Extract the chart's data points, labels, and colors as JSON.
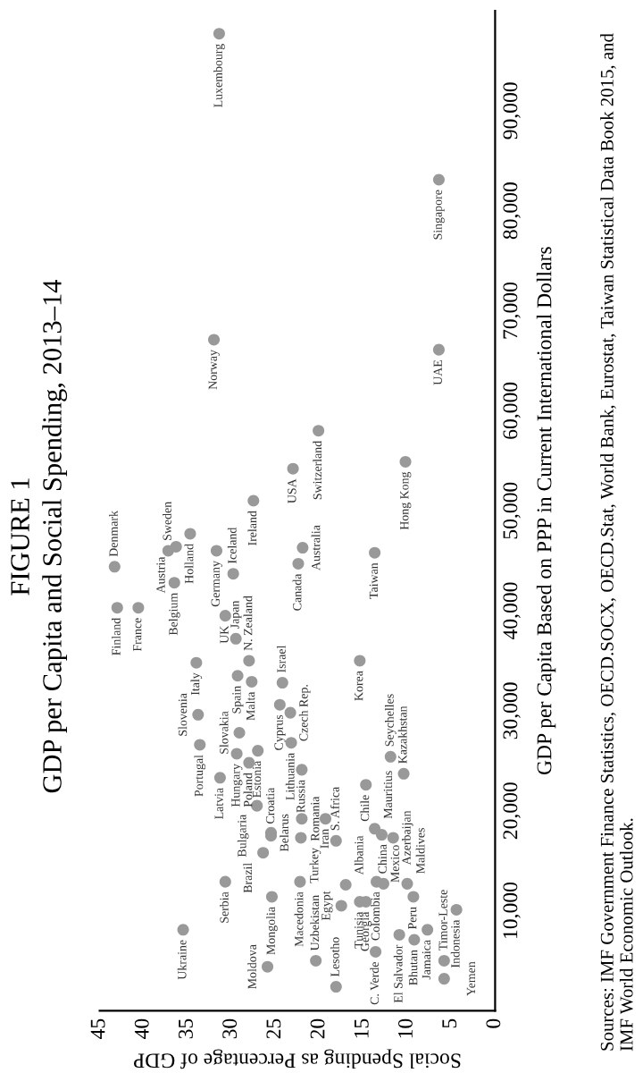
{
  "chart_data": {
    "type": "scatter",
    "title": "FIGURE 1",
    "subtitle": "GDP per Capita and Social Spending, 2013–14",
    "ylabel": "GDP per Capita Based on PPP in Current International Dollars",
    "xlabel": "Social Spending as Percentage of GDP",
    "marker": "circle",
    "grid": false,
    "legend": false,
    "ylim": [
      0,
      100000
    ],
    "yticks": [
      {
        "value": 10000,
        "label": "10,000"
      },
      {
        "value": 20000,
        "label": "20,000"
      },
      {
        "value": 30000,
        "label": "30,000"
      },
      {
        "value": 40000,
        "label": "40,000"
      },
      {
        "value": 50000,
        "label": "50,000"
      },
      {
        "value": 60000,
        "label": "60,000"
      },
      {
        "value": 70000,
        "label": "70,000"
      },
      {
        "value": 80000,
        "label": "80,000"
      },
      {
        "value": 90000,
        "label": "90,000"
      }
    ],
    "xlim": [
      45,
      0
    ],
    "xticks": [
      0,
      5,
      10,
      15,
      20,
      25,
      30,
      35,
      40,
      45
    ],
    "series": [
      {
        "color": "#999999",
        "values": [
          97700,
          83100,
          67100,
          66100,
          44400,
          40300,
          40300,
          46000,
          46400,
          47700,
          42800,
          46000,
          43700,
          51000,
          54200,
          58000,
          54900,
          44700,
          46300,
          45800,
          39500,
          34800,
          37200,
          35000,
          33500,
          32900,
          32800,
          35000,
          30600,
          29800,
          29600,
          26600,
          27800,
          25700,
          23300,
          20500,
          26000,
          26800,
          24800,
          17800,
          17500,
          24100,
          19200,
          17300,
          19200,
          17000,
          12900,
          15800,
          11400,
          4400,
          12900,
          5000,
          2400,
          10500,
          12600,
          10900,
          10900,
          12900,
          18200,
          22600,
          25400,
          17600,
          17300,
          23700,
          12700,
          12700,
          11400,
          10100,
          5900,
          7600,
          7100,
          8100,
          5000,
          3200,
          8100
        ],
        "x": [
          31.4,
          6.4,
          32.0,
          6.4,
          43.3,
          43.0,
          40.6,
          37.2,
          36.3,
          34.7,
          36.5,
          31.7,
          29.8,
          27.5,
          23.0,
          20.1,
          10.2,
          22.4,
          21.9,
          13.7,
          30.7,
          34.0,
          29.5,
          28.0,
          29.3,
          27.7,
          24.2,
          15.4,
          24.5,
          23.3,
          33.8,
          33.6,
          29.1,
          29.4,
          31.3,
          27.1,
          27.0,
          23.2,
          28.0,
          25.5,
          25.5,
          22.0,
          22.0,
          22.1,
          19.3,
          18.1,
          30.7,
          26.4,
          25.4,
          25.9,
          22.2,
          20.4,
          18.1,
          17.5,
          17.0,
          15.4,
          14.7,
          13.5,
          13.7,
          14.7,
          11.9,
          12.9,
          11.6,
          10.4,
          10.0,
          12.7,
          9.3,
          4.4,
          13.6,
          10.9,
          9.2,
          7.7,
          5.8,
          5.8,
          35.5
        ]
      }
    ],
    "annotations": [
      {
        "text": "Luxembourg",
        "y": 97700,
        "x": 31.4
      },
      {
        "text": "Singapore",
        "y": 83100,
        "x": 6.4
      },
      {
        "text": "Norway",
        "y": 67100,
        "x": 32.0
      },
      {
        "text": "UAE",
        "y": 66100,
        "x": 6.4
      },
      {
        "text": "Denmark",
        "y": 44400,
        "x": 43.3
      },
      {
        "text": "Finland",
        "y": 40300,
        "x": 43.0
      },
      {
        "text": "France",
        "y": 40300,
        "x": 40.6
      },
      {
        "text": "Sweden",
        "y": 46000,
        "x": 37.2
      },
      {
        "text": "Austria",
        "y": 46400,
        "x": 36.3
      },
      {
        "text": "Holland",
        "y": 47700,
        "x": 34.7
      },
      {
        "text": "Belgium",
        "y": 42800,
        "x": 36.5
      },
      {
        "text": "Germany",
        "y": 46000,
        "x": 31.7
      },
      {
        "text": "Iceland",
        "y": 43700,
        "x": 29.8
      },
      {
        "text": "Ireland",
        "y": 51000,
        "x": 27.5
      },
      {
        "text": "USA",
        "y": 54200,
        "x": 23.0
      },
      {
        "text": "Switzerland",
        "y": 58000,
        "x": 20.1
      },
      {
        "text": "Hong Kong",
        "y": 54900,
        "x": 10.2
      },
      {
        "text": "Canada",
        "y": 44700,
        "x": 22.4
      },
      {
        "text": "Australia",
        "y": 46300,
        "x": 21.9
      },
      {
        "text": "Taiwan",
        "y": 45800,
        "x": 13.7
      },
      {
        "text": "UK",
        "y": 39500,
        "x": 30.7
      },
      {
        "text": "Italy",
        "y": 34800,
        "x": 34.0
      },
      {
        "text": "Japan",
        "y": 37200,
        "x": 29.5
      },
      {
        "text": "N. Zealand",
        "y": 35000,
        "x": 28.0
      },
      {
        "text": "Spain",
        "y": 33500,
        "x": 29.3
      },
      {
        "text": "Malta",
        "y": 32900,
        "x": 27.7
      },
      {
        "text": "Israel",
        "y": 32800,
        "x": 24.2
      },
      {
        "text": "Korea",
        "y": 35000,
        "x": 15.4
      },
      {
        "text": "Cyprus",
        "y": 30600,
        "x": 24.5
      },
      {
        "text": "Czech Rep.",
        "y": 29800,
        "x": 23.3
      },
      {
        "text": "Slovenia",
        "y": 29600,
        "x": 33.8
      },
      {
        "text": "Portugal",
        "y": 26600,
        "x": 33.6
      },
      {
        "text": "Slovakia",
        "y": 27800,
        "x": 29.1
      },
      {
        "text": "Hungary",
        "y": 25700,
        "x": 29.4
      },
      {
        "text": "Latvia",
        "y": 23300,
        "x": 31.3
      },
      {
        "text": "Croatia",
        "y": 20500,
        "x": 27.1
      },
      {
        "text": "Estonia",
        "y": 26000,
        "x": 27.0
      },
      {
        "text": "Lithuania",
        "y": 26800,
        "x": 23.2
      },
      {
        "text": "Poland",
        "y": 24800,
        "x": 28.0
      },
      {
        "text": "Belarus",
        "y": 17800,
        "x": 25.5
      },
      {
        "text": "Bulgaria",
        "y": 17500,
        "x": 25.5
      },
      {
        "text": "Russia",
        "y": 24100,
        "x": 22.0
      },
      {
        "text": "Romania",
        "y": 19200,
        "x": 22.0
      },
      {
        "text": "Turkey",
        "y": 17300,
        "x": 22.1
      },
      {
        "text": "Iran",
        "y": 19200,
        "x": 19.3
      },
      {
        "text": "S. Africa",
        "y": 17000,
        "x": 18.1
      },
      {
        "text": "Serbia",
        "y": 12900,
        "x": 30.7
      },
      {
        "text": "Brazil",
        "y": 15800,
        "x": 26.4
      },
      {
        "text": "Mongolia",
        "y": 11400,
        "x": 25.4
      },
      {
        "text": "Moldova",
        "y": 4400,
        "x": 25.9
      },
      {
        "text": "Macedonia",
        "y": 12900,
        "x": 22.2
      },
      {
        "text": "Uzbekistan",
        "y": 5000,
        "x": 20.4
      },
      {
        "text": "Lesotho",
        "y": 2400,
        "x": 18.1
      },
      {
        "text": "Egypt",
        "y": 10500,
        "x": 17.5
      },
      {
        "text": "Albania",
        "y": 12600,
        "x": 17.0
      },
      {
        "text": "Tunisia",
        "y": 10900,
        "x": 15.4
      },
      {
        "text": "Georgia",
        "y": 10900,
        "x": 14.7
      },
      {
        "text": "Colombia",
        "y": 12900,
        "x": 13.5
      },
      {
        "text": "Mauritius",
        "y": 18200,
        "x": 13.7
      },
      {
        "text": "Chile",
        "y": 22600,
        "x": 14.7
      },
      {
        "text": "Seychelles",
        "y": 25400,
        "x": 11.9
      },
      {
        "text": "Mexico",
        "y": 17600,
        "x": 12.9
      },
      {
        "text": "Azerbaijan",
        "y": 17300,
        "x": 11.6
      },
      {
        "text": "Kazakhstan",
        "y": 23700,
        "x": 10.4
      },
      {
        "text": "Maldives",
        "y": 12700,
        "x": 10.0
      },
      {
        "text": "China",
        "y": 12700,
        "x": 12.7
      },
      {
        "text": "Peru",
        "y": 11400,
        "x": 9.3
      },
      {
        "text": "Indonesia",
        "y": 10100,
        "x": 4.4
      },
      {
        "text": "C. Verde",
        "y": 5900,
        "x": 13.6
      },
      {
        "text": "El Salvador",
        "y": 7600,
        "x": 10.9
      },
      {
        "text": "Bhutan",
        "y": 7100,
        "x": 9.2
      },
      {
        "text": "Jamaica",
        "y": 8100,
        "x": 7.7
      },
      {
        "text": "Timor-Leste",
        "y": 5000,
        "x": 5.8
      },
      {
        "text": "Yemen",
        "y": 3200,
        "x": 5.8
      },
      {
        "text": "Ukraine",
        "y": 8100,
        "x": 35.5
      },
      "Sources: IMF Government Finance Statistics, OECD.SOCX, OECD.Stat, World Bank, Eurostat, Taiwan Statistical Data Book 2015, and IMF World Economic Outlook."
    ]
  }
}
